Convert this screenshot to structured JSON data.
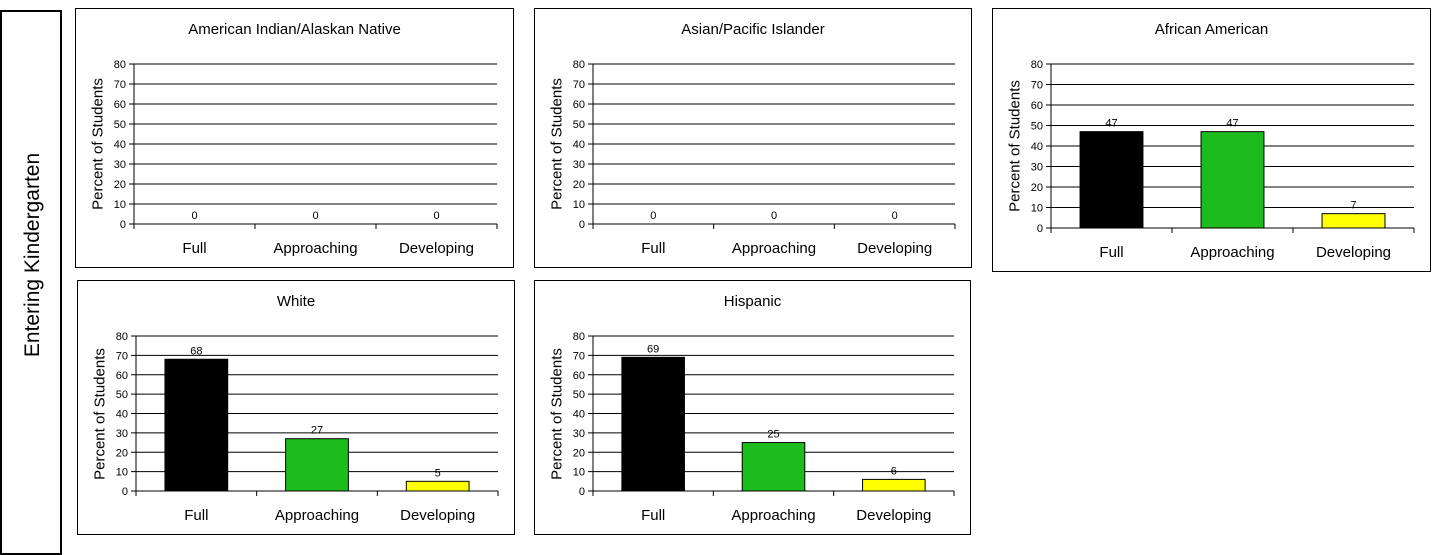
{
  "side_label": "Entering Kindergarten",
  "colors": {
    "full": "#000000",
    "approaching": "#1dbc1d",
    "developing": "#ffff00"
  },
  "chart_data": [
    {
      "type": "bar",
      "title": "American Indian/Alaskan Native",
      "ylabel": "Percent of Students",
      "xlabel": "",
      "categories": [
        "Full",
        "Approaching",
        "Developing"
      ],
      "values": [
        0,
        0,
        0
      ],
      "ylim": [
        0,
        80
      ],
      "yticks": [
        0,
        10,
        20,
        30,
        40,
        50,
        60,
        70,
        80
      ],
      "grid": true,
      "legend": "none"
    },
    {
      "type": "bar",
      "title": "Asian/Pacific Islander",
      "ylabel": "Percent of Students",
      "xlabel": "",
      "categories": [
        "Full",
        "Approaching",
        "Developing"
      ],
      "values": [
        0,
        0,
        0
      ],
      "ylim": [
        0,
        80
      ],
      "yticks": [
        0,
        10,
        20,
        30,
        40,
        50,
        60,
        70,
        80
      ],
      "grid": true,
      "legend": "none"
    },
    {
      "type": "bar",
      "title": "African American",
      "ylabel": "Percent of Students",
      "xlabel": "",
      "categories": [
        "Full",
        "Approaching",
        "Developing"
      ],
      "values": [
        47,
        47,
        7
      ],
      "ylim": [
        0,
        80
      ],
      "yticks": [
        0,
        10,
        20,
        30,
        40,
        50,
        60,
        70,
        80
      ],
      "grid": true,
      "legend": "none"
    },
    {
      "type": "bar",
      "title": "White",
      "ylabel": "Percent of Students",
      "xlabel": "",
      "categories": [
        "Full",
        "Approaching",
        "Developing"
      ],
      "values": [
        68,
        27,
        5
      ],
      "ylim": [
        0,
        80
      ],
      "yticks": [
        0,
        10,
        20,
        30,
        40,
        50,
        60,
        70,
        80
      ],
      "grid": true,
      "legend": "none"
    },
    {
      "type": "bar",
      "title": "Hispanic",
      "ylabel": "Percent of Students",
      "xlabel": "",
      "categories": [
        "Full",
        "Approaching",
        "Developing"
      ],
      "values": [
        69,
        25,
        6
      ],
      "ylim": [
        0,
        80
      ],
      "yticks": [
        0,
        10,
        20,
        30,
        40,
        50,
        60,
        70,
        80
      ],
      "grid": true,
      "legend": "none"
    }
  ]
}
